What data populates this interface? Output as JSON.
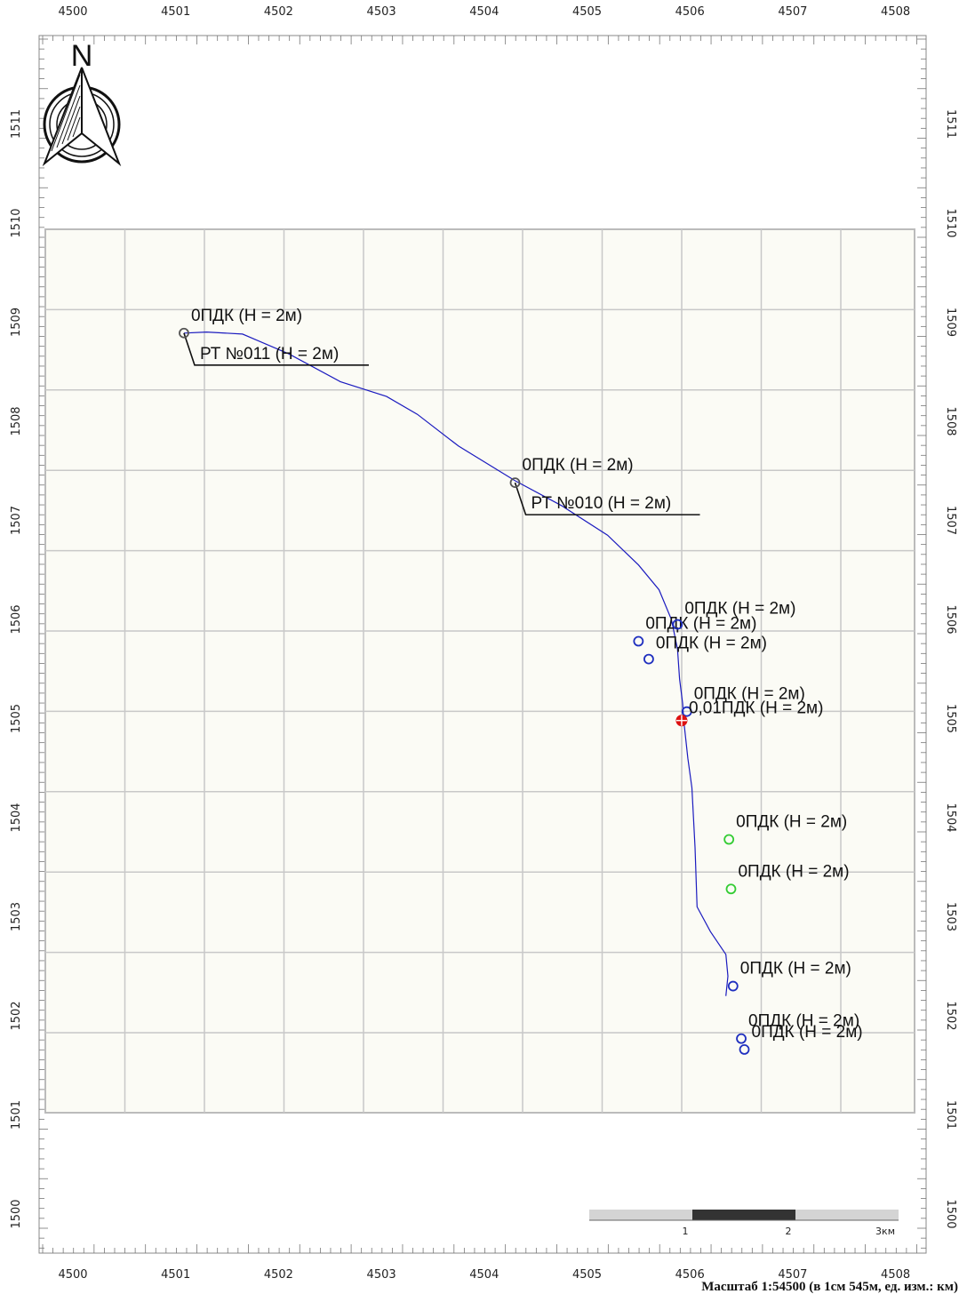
{
  "colors": {
    "panel_bg": "#fbfbf5",
    "grid": "#c8c8c8",
    "route": "#1b1bbf",
    "marker_blue": "#1f2fbf",
    "marker_green": "#33cc33",
    "marker_gray": "#555555",
    "marker_red": "#dd1111"
  },
  "north_arrow": {
    "label": "N",
    "icon": "north-arrow-icon"
  },
  "axes": {
    "x_ticks": [
      "4500",
      "4501",
      "4502",
      "4503",
      "4504",
      "4505",
      "4506",
      "4507",
      "4508"
    ],
    "y_ticks": [
      "1500",
      "1501",
      "1502",
      "1503",
      "1504",
      "1505",
      "1506",
      "1507",
      "1508",
      "1509",
      "1510",
      "1511"
    ],
    "unit": "км"
  },
  "route": [
    [
      4501.08,
      1508.89
    ],
    [
      4501.3,
      1508.9
    ],
    [
      4501.65,
      1508.88
    ],
    [
      4502.1,
      1508.68
    ],
    [
      4502.6,
      1508.4
    ],
    [
      4503.05,
      1508.25
    ],
    [
      4503.35,
      1508.07
    ],
    [
      4503.75,
      1507.75
    ],
    [
      4504.3,
      1507.4
    ],
    [
      4504.75,
      1507.15
    ],
    [
      4505.2,
      1506.85
    ],
    [
      4505.5,
      1506.55
    ],
    [
      4505.7,
      1506.3
    ],
    [
      4505.82,
      1506.0
    ],
    [
      4505.88,
      1505.7
    ],
    [
      4505.9,
      1505.4
    ],
    [
      4505.93,
      1505.15
    ],
    [
      4505.94,
      1504.98
    ],
    [
      4505.98,
      1504.6
    ],
    [
      4506.02,
      1504.3
    ],
    [
      4506.05,
      1503.7
    ],
    [
      4506.07,
      1503.1
    ],
    [
      4506.2,
      1502.85
    ],
    [
      4506.35,
      1502.62
    ],
    [
      4506.37,
      1502.4
    ],
    [
      4506.35,
      1502.2
    ]
  ],
  "points": [
    {
      "x": 4501.08,
      "y": 1508.89,
      "color": "gray",
      "label": "0ПДК (H = 2м)",
      "dx": 8,
      "dy": -14
    },
    {
      "x": 4504.3,
      "y": 1507.38,
      "color": "gray",
      "label": "0ПДК (H = 2м)",
      "dx": 8,
      "dy": -14
    },
    {
      "x": 4505.5,
      "y": 1505.78,
      "color": "blue",
      "label": "0ПДК (H = 2м)",
      "dx": 8,
      "dy": -14
    },
    {
      "x": 4505.6,
      "y": 1505.6,
      "color": "blue",
      "label": "0ПДК (H = 2м)",
      "dx": 8,
      "dy": -12
    },
    {
      "x": 4505.88,
      "y": 1505.95,
      "color": "blue",
      "label": "0ПДК (H = 2м)",
      "dx": 8,
      "dy": -12
    },
    {
      "x": 4505.97,
      "y": 1505.07,
      "color": "blue",
      "label": "0ПДК (H = 2м)",
      "dx": 8,
      "dy": -14
    },
    {
      "x": 4506.38,
      "y": 1503.78,
      "color": "green",
      "label": "0ПДК (H = 2м)",
      "dx": 8,
      "dy": -14
    },
    {
      "x": 4506.4,
      "y": 1503.28,
      "color": "green",
      "label": "0ПДК (H = 2м)",
      "dx": 8,
      "dy": -14
    },
    {
      "x": 4506.42,
      "y": 1502.3,
      "color": "blue",
      "label": "0ПДК (H = 2м)",
      "dx": 8,
      "dy": -14
    },
    {
      "x": 4506.5,
      "y": 1501.77,
      "color": "blue",
      "label": "0ПДК (H = 2м)",
      "dx": 8,
      "dy": -14
    },
    {
      "x": 4506.53,
      "y": 1501.66,
      "color": "blue",
      "label": "0ПДК (H = 2м)",
      "dx": 8,
      "dy": -14
    }
  ],
  "source_marker": {
    "x": 4505.92,
    "y": 1504.98,
    "label": "0,01ПДК (H = 2м)"
  },
  "callouts": [
    {
      "x": 4501.08,
      "y": 1508.89,
      "label": "РТ №011 (H = 2м)"
    },
    {
      "x": 4504.3,
      "y": 1507.38,
      "label": "РТ №010 (H = 2м)"
    }
  ],
  "scale_bar": {
    "labels": [
      "1",
      "2",
      "3км"
    ]
  },
  "caption": "Масштаб 1:54500 (в 1см 545м, ед. изм.: км)"
}
